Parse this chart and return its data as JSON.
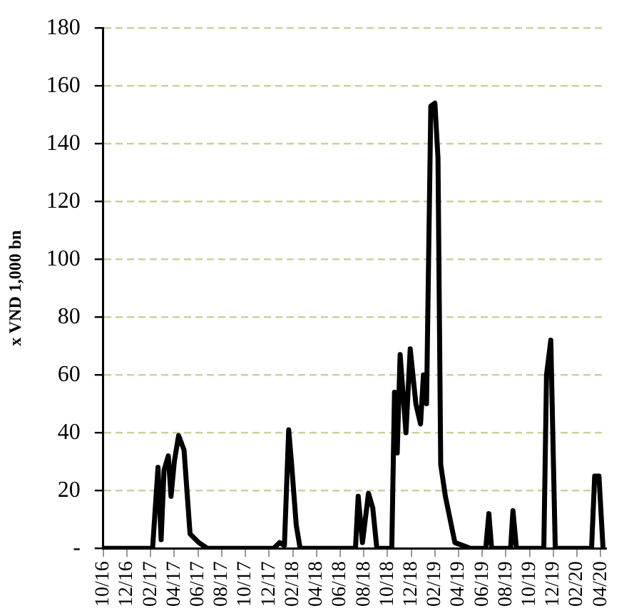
{
  "chart_data": {
    "type": "line",
    "ylabel": "x VND 1,000 bn",
    "x": [
      "2016-10-01",
      "2017-02-06",
      "2017-02-20",
      "2017-02-28",
      "2017-03-05",
      "2017-03-16",
      "2017-03-23",
      "2017-04-01",
      "2017-04-12",
      "2017-04-26",
      "2017-05-11",
      "2017-06-03",
      "2017-06-25",
      "2017-12-13",
      "2017-12-28",
      "2018-01-10",
      "2018-01-21",
      "2018-01-28",
      "2018-02-10",
      "2018-02-20",
      "2018-07-10",
      "2018-07-17",
      "2018-07-28",
      "2018-08-13",
      "2018-08-24",
      "2018-09-04",
      "2018-10-12",
      "2018-10-19",
      "2018-10-26",
      "2018-11-03",
      "2018-11-18",
      "2018-11-29",
      "2018-12-13",
      "2018-12-25",
      "2019-01-02",
      "2019-01-10",
      "2019-01-21",
      "2019-02-01",
      "2019-02-09",
      "2019-02-16",
      "2019-02-28",
      "2019-03-22",
      "2019-05-01",
      "2019-06-10",
      "2019-06-18",
      "2019-06-25",
      "2019-08-13",
      "2019-08-19",
      "2019-08-28",
      "2019-11-07",
      "2019-11-14",
      "2019-11-25",
      "2019-12-06",
      "2020-03-08",
      "2020-03-16",
      "2020-03-27",
      "2020-04-07"
    ],
    "series": [
      {
        "color": "#000000",
        "values": [
          0,
          0,
          28,
          3,
          27,
          32,
          18,
          30,
          39,
          34,
          5,
          2,
          0,
          0,
          2,
          1,
          41,
          30,
          8,
          0,
          0,
          18,
          2,
          19,
          14,
          0,
          0,
          54,
          33,
          67,
          40,
          69,
          50,
          43,
          60,
          50,
          153,
          154,
          135,
          29,
          18,
          2,
          0,
          0,
          12,
          0,
          0,
          13,
          0,
          0,
          60,
          72,
          0,
          0,
          25,
          25,
          0
        ]
      }
    ],
    "xlim": [
      "2016-10-01",
      "2020-04-15"
    ],
    "xticks": [
      {
        "value": "2016-10-01",
        "label": "10/16"
      },
      {
        "value": "2016-12-01",
        "label": "12/16"
      },
      {
        "value": "2017-02-01",
        "label": "02/17"
      },
      {
        "value": "2017-04-01",
        "label": "04/17"
      },
      {
        "value": "2017-06-01",
        "label": "06/17"
      },
      {
        "value": "2017-08-01",
        "label": "08/17"
      },
      {
        "value": "2017-10-01",
        "label": "10/17"
      },
      {
        "value": "2017-12-01",
        "label": "12/17"
      },
      {
        "value": "2018-02-01",
        "label": "02/18"
      },
      {
        "value": "2018-04-01",
        "label": "04/18"
      },
      {
        "value": "2018-06-01",
        "label": "06/18"
      },
      {
        "value": "2018-08-01",
        "label": "08/18"
      },
      {
        "value": "2018-10-01",
        "label": "10/18"
      },
      {
        "value": "2018-12-01",
        "label": "12/18"
      },
      {
        "value": "2019-02-01",
        "label": "02/19"
      },
      {
        "value": "2019-04-01",
        "label": "04/19"
      },
      {
        "value": "2019-06-01",
        "label": "06/19"
      },
      {
        "value": "2019-08-01",
        "label": "08/19"
      },
      {
        "value": "2019-10-01",
        "label": "10/19"
      },
      {
        "value": "2019-12-01",
        "label": "12/19"
      },
      {
        "value": "2020-02-01",
        "label": "02/20"
      },
      {
        "value": "2020-04-01",
        "label": "04/20"
      }
    ],
    "ylim": [
      0,
      180
    ],
    "yticks": [
      {
        "value": 0,
        "label": "-"
      },
      20,
      40,
      60,
      80,
      100,
      120,
      140,
      160,
      180
    ],
    "grid": "y",
    "marker": "none",
    "line_style": "solid",
    "legend": false
  }
}
